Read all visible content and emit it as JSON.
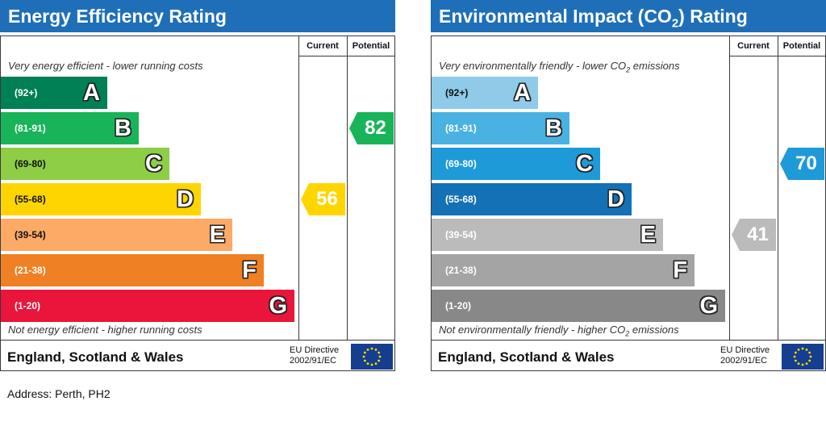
{
  "energy": {
    "title": "Energy Efficiency Rating",
    "col_current": "Current",
    "col_potential": "Potential",
    "top_note": "Very energy efficient - lower running costs",
    "bottom_note": "Not energy efficient - higher running costs",
    "country": "England, Scotland & Wales",
    "directive_line1": "EU Directive",
    "directive_line2": "2002/91/EC",
    "bands": [
      {
        "range": "(92+)",
        "letter": "A",
        "color": "#008054"
      },
      {
        "range": "(81-91)",
        "letter": "B",
        "color": "#19b459"
      },
      {
        "range": "(69-80)",
        "letter": "C",
        "color": "#8dce46"
      },
      {
        "range": "(55-68)",
        "letter": "D",
        "color": "#ffd500"
      },
      {
        "range": "(39-54)",
        "letter": "E",
        "color": "#fcaa65"
      },
      {
        "range": "(21-38)",
        "letter": "F",
        "color": "#ef8023"
      },
      {
        "range": "(1-20)",
        "letter": "G",
        "color": "#e9153b"
      }
    ],
    "current": {
      "value": "56",
      "band": "D",
      "color": "#ffd500"
    },
    "potential": {
      "value": "82",
      "band": "B",
      "color": "#19b459"
    }
  },
  "environmental": {
    "title_prefix": "Environmental Impact (CO",
    "title_sub": "2",
    "title_suffix": ") Rating",
    "col_current": "Current",
    "col_potential": "Potential",
    "top_note_prefix": "Very environmentally friendly - lower CO",
    "top_note_sub": "2",
    "top_note_suffix": " emissions",
    "bottom_note_prefix": "Not environmentally friendly - higher CO",
    "bottom_note_sub": "2",
    "bottom_note_suffix": " emissions",
    "country": "England, Scotland & Wales",
    "directive_line1": "EU Directive",
    "directive_line2": "2002/91/EC",
    "bands": [
      {
        "range": "(92+)",
        "letter": "A",
        "color": "#8fcbe9"
      },
      {
        "range": "(81-91)",
        "letter": "B",
        "color": "#4ab2e2"
      },
      {
        "range": "(69-80)",
        "letter": "C",
        "color": "#1f9ad8"
      },
      {
        "range": "(55-68)",
        "letter": "D",
        "color": "#1471b5"
      },
      {
        "range": "(39-54)",
        "letter": "E",
        "color": "#bbbbbb"
      },
      {
        "range": "(21-38)",
        "letter": "F",
        "color": "#a4a4a4"
      },
      {
        "range": "(1-20)",
        "letter": "G",
        "color": "#888888"
      }
    ],
    "current": {
      "value": "41",
      "band": "E",
      "color": "#bbbbbb"
    },
    "potential": {
      "value": "70",
      "band": "C",
      "color": "#1f9ad8"
    }
  },
  "address": "Address: Perth, PH2",
  "chart_data": [
    {
      "type": "bar",
      "title": "Energy Efficiency Rating",
      "categories": [
        "A",
        "B",
        "C",
        "D",
        "E",
        "F",
        "G"
      ],
      "ranges": [
        "(92+)",
        "(81-91)",
        "(69-80)",
        "(55-68)",
        "(39-54)",
        "(21-38)",
        "(1-20)"
      ],
      "series": [
        {
          "name": "Current",
          "values": [
            null,
            null,
            null,
            56,
            null,
            null,
            null
          ]
        },
        {
          "name": "Potential",
          "values": [
            null,
            82,
            null,
            null,
            null,
            null,
            null
          ]
        }
      ]
    },
    {
      "type": "bar",
      "title": "Environmental Impact (CO2) Rating",
      "categories": [
        "A",
        "B",
        "C",
        "D",
        "E",
        "F",
        "G"
      ],
      "ranges": [
        "(92+)",
        "(81-91)",
        "(69-80)",
        "(55-68)",
        "(39-54)",
        "(21-38)",
        "(1-20)"
      ],
      "series": [
        {
          "name": "Current",
          "values": [
            null,
            null,
            null,
            null,
            41,
            null,
            null
          ]
        },
        {
          "name": "Potential",
          "values": [
            null,
            null,
            70,
            null,
            null,
            null,
            null
          ]
        }
      ]
    }
  ]
}
